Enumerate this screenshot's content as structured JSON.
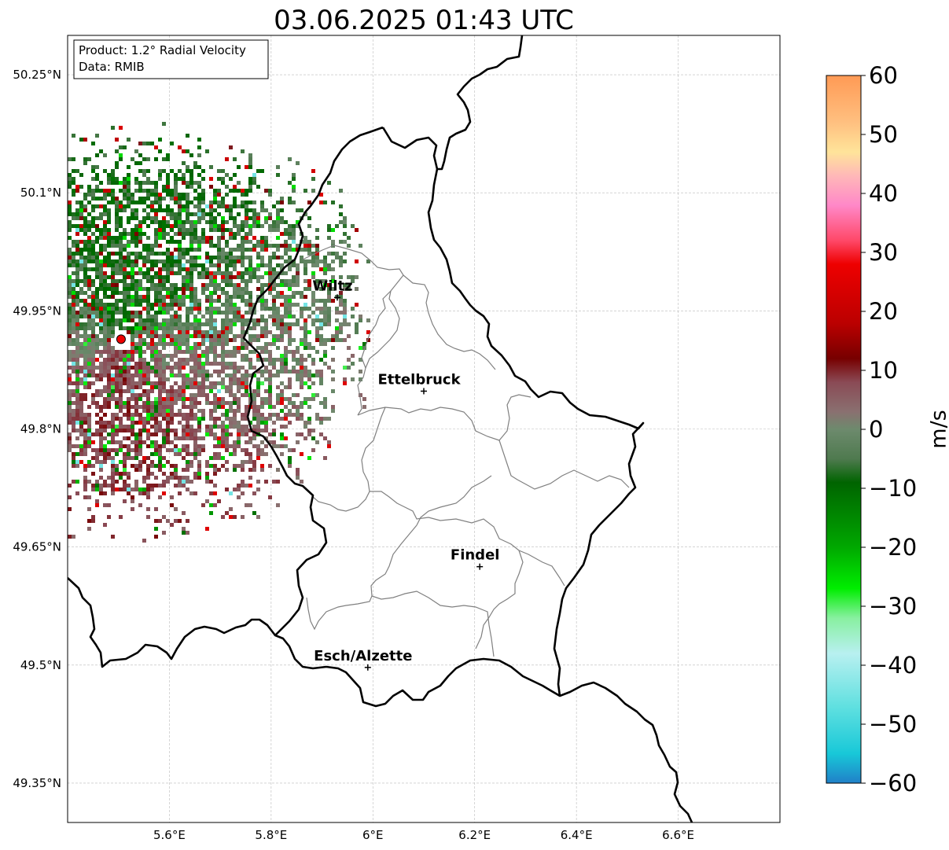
{
  "map": {
    "title": "03.06.2025 01:43 UTC",
    "info_lines": [
      "Product: 1.2° Radial Velocity",
      "Data: RMIB"
    ],
    "x_ticks": [
      "5.6°E",
      "5.8°E",
      "6°E",
      "6.2°E",
      "6.4°E",
      "6.6°E"
    ],
    "y_ticks": [
      "50.25°N",
      "50.1°N",
      "49.95°N",
      "49.8°N",
      "49.65°N",
      "49.5°N",
      "49.35°N"
    ],
    "cities": [
      {
        "name": "Wiltz",
        "lon": 5.93,
        "lat": 49.967
      },
      {
        "name": "Ettelbruck",
        "lon": 6.1,
        "lat": 49.848
      },
      {
        "name": "Findel",
        "lon": 6.21,
        "lat": 49.625
      },
      {
        "name": "Esch/Alzette",
        "lon": 5.99,
        "lat": 49.497
      }
    ],
    "radar_site": {
      "lon": 5.505,
      "lat": 49.914
    },
    "extent": {
      "lon": [
        5.4,
        6.8
      ],
      "lat": [
        49.3,
        50.3
      ]
    },
    "grid": true
  },
  "colorbar": {
    "label": "m/s",
    "ticks": [
      "60",
      "50",
      "40",
      "30",
      "20",
      "10",
      "0",
      "−10",
      "−20",
      "−30",
      "−40",
      "−50",
      "−60"
    ],
    "range": [
      -60,
      60
    ],
    "stops": [
      {
        "v": 60,
        "c": "#ff9a55"
      },
      {
        "v": 52,
        "c": "#ffc080"
      },
      {
        "v": 47,
        "c": "#ffe49a"
      },
      {
        "v": 43,
        "c": "#ffb8b8"
      },
      {
        "v": 38,
        "c": "#ff88c8"
      },
      {
        "v": 32,
        "c": "#ff4868"
      },
      {
        "v": 28,
        "c": "#ee0000"
      },
      {
        "v": 18,
        "c": "#bb0000"
      },
      {
        "v": 12,
        "c": "#770000"
      },
      {
        "v": 8,
        "c": "#8a4a55"
      },
      {
        "v": 3,
        "c": "#8a7070"
      },
      {
        "v": 0,
        "c": "#6d8a6d"
      },
      {
        "v": -5,
        "c": "#4f7a4f"
      },
      {
        "v": -9,
        "c": "#006400"
      },
      {
        "v": -20,
        "c": "#00a800"
      },
      {
        "v": -27,
        "c": "#00ee00"
      },
      {
        "v": -32,
        "c": "#88f0a0"
      },
      {
        "v": -38,
        "c": "#b8f0f0"
      },
      {
        "v": -47,
        "c": "#60e0e0"
      },
      {
        "v": -55,
        "c": "#18c8d8"
      },
      {
        "v": -60,
        "c": "#2080c8"
      }
    ]
  },
  "colors": {
    "border": "#000000",
    "cantons": "#808080",
    "grid": "#bbbbbb",
    "radar_site": "#ee0000"
  }
}
